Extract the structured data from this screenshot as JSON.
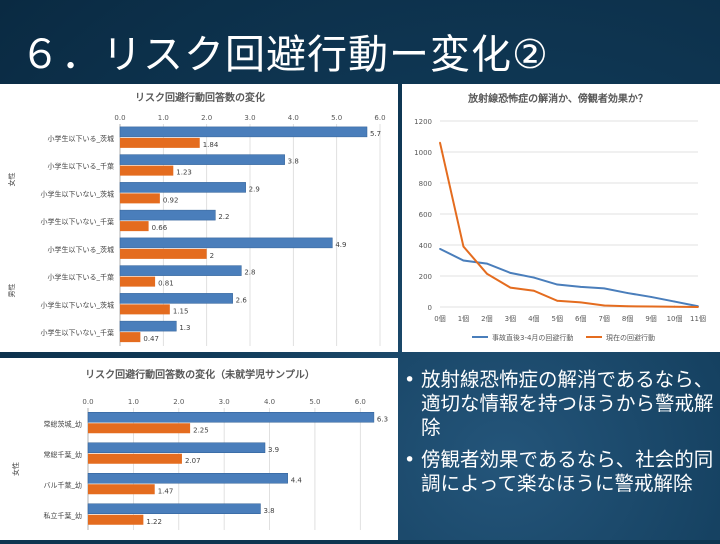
{
  "slide": {
    "title": "６．リスク回避行動ー変化②",
    "bullets": [
      "放射線恐怖症の解消であるなら、適切な情報を持つほうから警戒解除",
      "傍観者効果であるなら、社会的同調によって楽なほうに警戒解除"
    ]
  },
  "colors": {
    "blue": "#4a7ebb",
    "orange": "#e46c1f",
    "bullet_text": "#ffffff"
  },
  "chart_data": [
    {
      "type": "bar",
      "orientation": "horizontal",
      "title": "リスク回避行動回答数の変化",
      "xlim": [
        0,
        6
      ],
      "ticks": [
        "0.0",
        "1.0",
        "2.0",
        "3.0",
        "4.0",
        "5.0",
        "6.0"
      ],
      "groups": [
        {
          "label": "女性",
          "categories": [
            "小学生以下いる_茨城",
            "小学生以下いる_千葉",
            "小学生以下いない_茨城",
            "小学生以下いない_千葉"
          ]
        },
        {
          "label": "男性",
          "categories": [
            "小学生以下いる_茨城",
            "小学生以下いる_千葉",
            "小学生以下いない_茨城",
            "小学生以下いない_千葉"
          ]
        }
      ],
      "categories": [
        "小学生以下いる_茨城",
        "小学生以下いる_千葉",
        "小学生以下いない_茨城",
        "小学生以下いない_千葉",
        "小学生以下いる_茨城",
        "小学生以下いる_千葉",
        "小学生以下いない_茨城",
        "小学生以下いない_千葉"
      ],
      "series": [
        {
          "values": [
            5.7,
            3.8,
            2.9,
            2.2,
            4.9,
            2.8,
            2.6,
            1.3
          ],
          "labels": [
            "5.7",
            "3.8",
            "2.9",
            "2.2",
            "4.9",
            "2.8",
            "2.6",
            "1.3"
          ]
        },
        {
          "values": [
            1.84,
            1.23,
            0.92,
            0.66,
            2.0,
            0.81,
            1.15,
            0.47
          ],
          "labels": [
            "1.84",
            "1.23",
            "0.92",
            "0.66",
            "2",
            "0.81",
            "1.15",
            "0.47"
          ]
        }
      ]
    },
    {
      "type": "line",
      "title": "放射線恐怖症の解消か、傍観者効果か？",
      "x": [
        "0個",
        "1個",
        "2個",
        "3個",
        "4個",
        "5個",
        "6個",
        "7個",
        "8個",
        "9個",
        "10個",
        "11個"
      ],
      "ylim": [
        0,
        1200
      ],
      "yticks": [
        "0",
        "200",
        "400",
        "600",
        "800",
        "1000",
        "1200"
      ],
      "legend": "bottom",
      "series": [
        {
          "name": "事故直後3-4月の回避行動",
          "values": [
            375,
            300,
            280,
            220,
            190,
            145,
            130,
            120,
            90,
            65,
            35,
            5
          ]
        },
        {
          "name": "現在の回避行動",
          "values": [
            1060,
            390,
            215,
            125,
            105,
            40,
            30,
            10,
            5,
            3,
            2,
            0
          ]
        }
      ]
    },
    {
      "type": "bar",
      "orientation": "horizontal",
      "title": "リスク回避行動回答数の変化（未就学児サンプル）",
      "xlim": [
        0,
        6.5
      ],
      "ticks": [
        "0.0",
        "1.0",
        "2.0",
        "3.0",
        "4.0",
        "5.0",
        "6.0"
      ],
      "groups": [
        {
          "label": "女性",
          "categories": [
            "常総茨城_幼",
            "常総千葉_幼",
            "バル千葉_幼",
            "私立千葉_幼"
          ]
        }
      ],
      "categories": [
        "常総茨城_幼",
        "常総千葉_幼",
        "バル千葉_幼",
        "私立千葉_幼"
      ],
      "series": [
        {
          "values": [
            6.3,
            3.9,
            4.4,
            3.8
          ],
          "labels": [
            "6.3",
            "3.9",
            "4.4",
            "3.8"
          ]
        },
        {
          "values": [
            2.25,
            2.07,
            1.47,
            1.22
          ],
          "labels": [
            "2.25",
            "2.07",
            "1.47",
            "1.22"
          ]
        }
      ]
    }
  ]
}
